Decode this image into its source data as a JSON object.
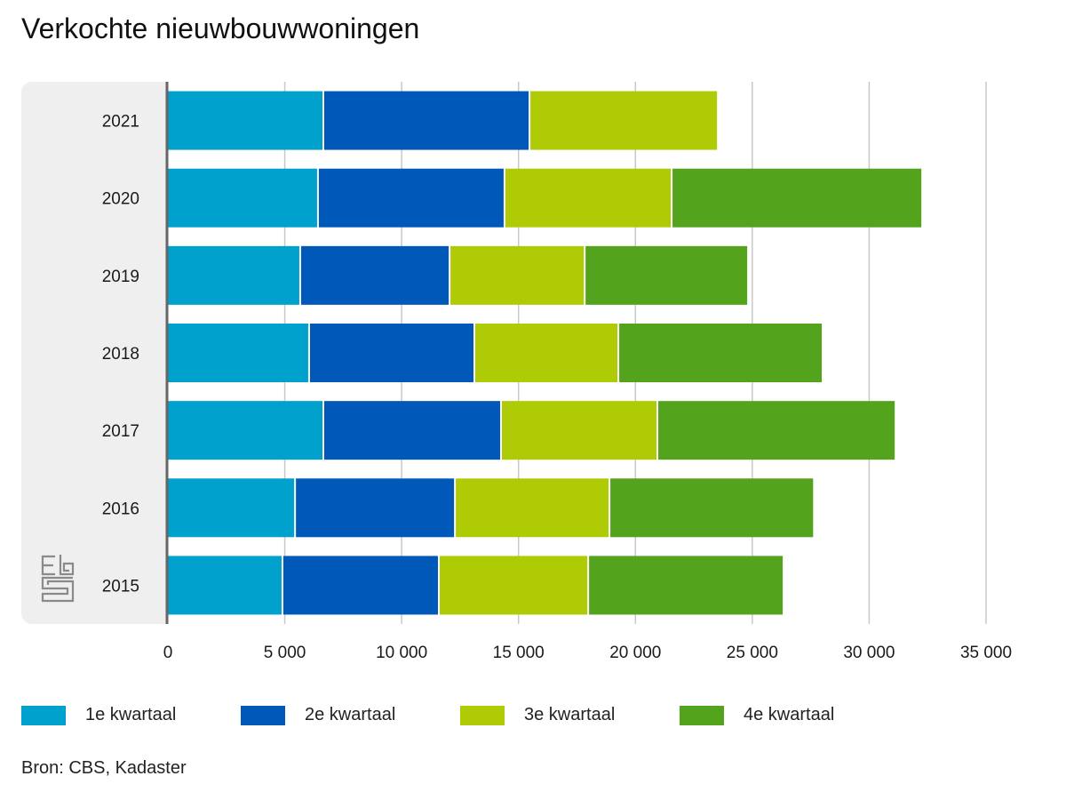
{
  "title": "Verkochte nieuwbouwwoningen",
  "source": "Bron: CBS, Kadaster",
  "logo": "cbs-logo-icon",
  "colors": {
    "q1": "#00a1cd",
    "q2": "#0058b8",
    "q3": "#afcb05",
    "q4": "#53a31d",
    "grid": "#c8c8c8",
    "axis": "#666666",
    "panel": "#efefef"
  },
  "chart_data": {
    "type": "bar",
    "orientation": "horizontal",
    "stacked": true,
    "title": "Verkochte nieuwbouwwoningen",
    "xlabel": "",
    "ylabel": "",
    "categories": [
      "2021",
      "2020",
      "2019",
      "2018",
      "2017",
      "2016",
      "2015"
    ],
    "series": [
      {
        "name": "1e kwartaal",
        "color": "#00a1cd",
        "values": [
          6650,
          6420,
          5660,
          6040,
          6650,
          5440,
          4900
        ]
      },
      {
        "name": "2e kwartaal",
        "color": "#0058b8",
        "values": [
          8820,
          7980,
          6390,
          7070,
          7600,
          6840,
          6690
        ]
      },
      {
        "name": "3e kwartaal",
        "color": "#afcb05",
        "values": [
          8060,
          7150,
          5780,
          6160,
          6690,
          6610,
          6390
        ]
      },
      {
        "name": "4e kwartaal",
        "color": "#53a31d",
        "values": [
          null,
          10720,
          6990,
          8740,
          10190,
          8750,
          8360
        ]
      }
    ],
    "xlim": [
      0,
      35000
    ],
    "xticks": [
      0,
      5000,
      10000,
      15000,
      20000,
      25000,
      30000,
      35000
    ],
    "xtick_labels": [
      "0",
      "5 000",
      "10 000",
      "15 000",
      "20 000",
      "25 000",
      "30 000",
      "35 000"
    ],
    "grid": true,
    "legend": "bottom"
  }
}
